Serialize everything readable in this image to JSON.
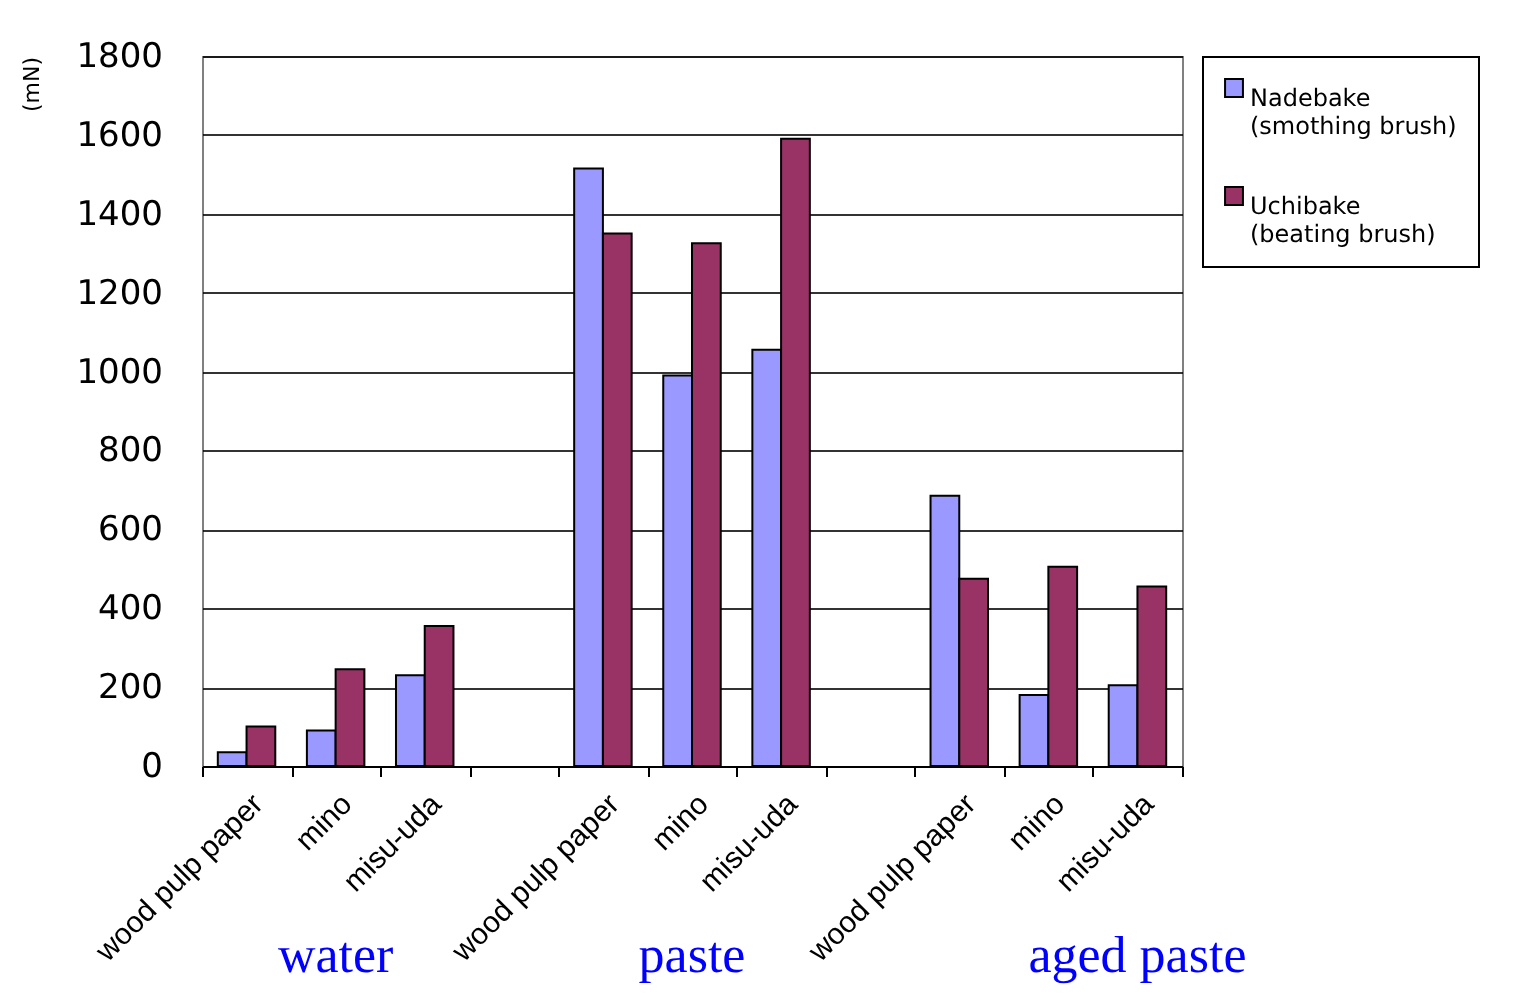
{
  "chart_data": {
    "type": "bar",
    "ylabel": "(mN)",
    "categories": [
      "wood pulp paper",
      "mino",
      "misu-uda",
      null,
      "wood pulp paper",
      "mino",
      "misu-uda",
      null,
      "wood pulp paper",
      "mino",
      "misu-uda"
    ],
    "series": [
      {
        "name": "Nadebake (smothing brush)",
        "color": "#9999ff",
        "values": [
          35,
          90,
          230,
          null,
          1515,
          990,
          1055,
          null,
          685,
          180,
          205
        ]
      },
      {
        "name": "Uchibake (beating brush)",
        "color": "#993366",
        "values": [
          100,
          245,
          355,
          null,
          1350,
          1325,
          1590,
          null,
          475,
          505,
          455
        ]
      }
    ],
    "ylim": [
      0,
      1800
    ],
    "yticks": [
      0,
      200,
      400,
      600,
      800,
      1000,
      1200,
      1400,
      1600,
      1800
    ],
    "grid": "y",
    "legend": "right",
    "annotations": [
      "water",
      "paste",
      "aged paste"
    ]
  }
}
